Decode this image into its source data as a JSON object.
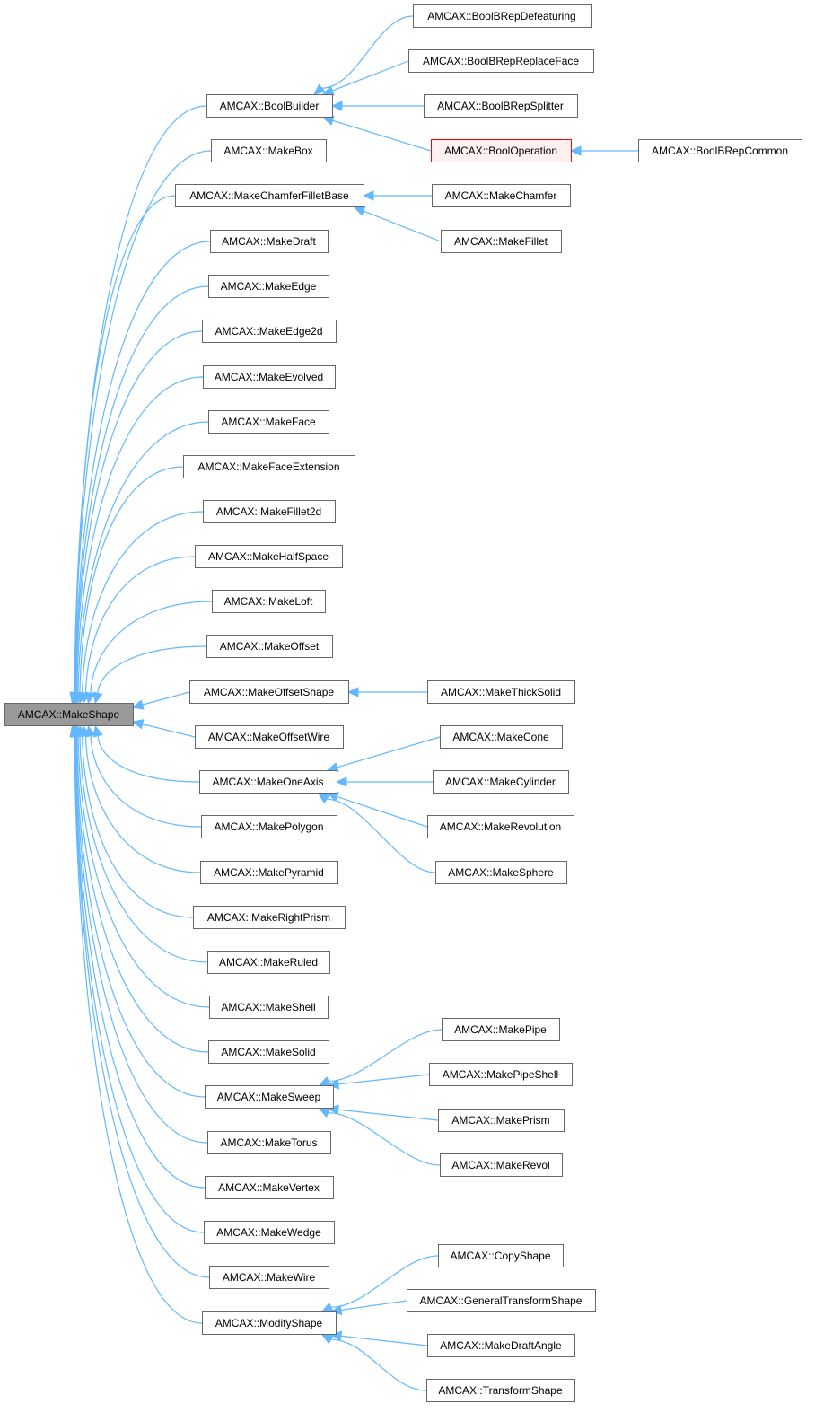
{
  "colors": {
    "edge": "#63b8ff",
    "node_border": "#666666",
    "root_fill": "#999999",
    "highlight_border": "#ff0000",
    "highlight_fill": "#fff0f0"
  },
  "root": "AMCAX::MakeShape",
  "highlighted": "AMCAX::BoolOperation",
  "nodes": [
    "AMCAX::MakeShape",
    "AMCAX::BoolBuilder",
    "AMCAX::MakeBox",
    "AMCAX::MakeChamferFilletBase",
    "AMCAX::MakeDraft",
    "AMCAX::MakeEdge",
    "AMCAX::MakeEdge2d",
    "AMCAX::MakeEvolved",
    "AMCAX::MakeFace",
    "AMCAX::MakeFaceExtension",
    "AMCAX::MakeFillet2d",
    "AMCAX::MakeHalfSpace",
    "AMCAX::MakeLoft",
    "AMCAX::MakeOffset",
    "AMCAX::MakeOffsetShape",
    "AMCAX::MakeOffsetWire",
    "AMCAX::MakeOneAxis",
    "AMCAX::MakePolygon",
    "AMCAX::MakePyramid",
    "AMCAX::MakeRightPrism",
    "AMCAX::MakeRuled",
    "AMCAX::MakeShell",
    "AMCAX::MakeSolid",
    "AMCAX::MakeSweep",
    "AMCAX::MakeTorus",
    "AMCAX::MakeVertex",
    "AMCAX::MakeWedge",
    "AMCAX::MakeWire",
    "AMCAX::ModifyShape",
    "AMCAX::BoolBRepDefeaturing",
    "AMCAX::BoolBRepReplaceFace",
    "AMCAX::BoolBRepSplitter",
    "AMCAX::BoolOperation",
    "AMCAX::BoolBRepCommon",
    "AMCAX::MakeChamfer",
    "AMCAX::MakeFillet",
    "AMCAX::MakeThickSolid",
    "AMCAX::MakeCone",
    "AMCAX::MakeCylinder",
    "AMCAX::MakeRevolution",
    "AMCAX::MakeSphere",
    "AMCAX::MakePipe",
    "AMCAX::MakePipeShell",
    "AMCAX::MakePrism",
    "AMCAX::MakeRevol",
    "AMCAX::CopyShape",
    "AMCAX::GeneralTransformShape",
    "AMCAX::MakeDraftAngle",
    "AMCAX::TransformShape"
  ],
  "edges": [
    [
      "AMCAX::BoolBuilder",
      "AMCAX::MakeShape"
    ],
    [
      "AMCAX::MakeBox",
      "AMCAX::MakeShape"
    ],
    [
      "AMCAX::MakeChamferFilletBase",
      "AMCAX::MakeShape"
    ],
    [
      "AMCAX::MakeDraft",
      "AMCAX::MakeShape"
    ],
    [
      "AMCAX::MakeEdge",
      "AMCAX::MakeShape"
    ],
    [
      "AMCAX::MakeEdge2d",
      "AMCAX::MakeShape"
    ],
    [
      "AMCAX::MakeEvolved",
      "AMCAX::MakeShape"
    ],
    [
      "AMCAX::MakeFace",
      "AMCAX::MakeShape"
    ],
    [
      "AMCAX::MakeFaceExtension",
      "AMCAX::MakeShape"
    ],
    [
      "AMCAX::MakeFillet2d",
      "AMCAX::MakeShape"
    ],
    [
      "AMCAX::MakeHalfSpace",
      "AMCAX::MakeShape"
    ],
    [
      "AMCAX::MakeLoft",
      "AMCAX::MakeShape"
    ],
    [
      "AMCAX::MakeOffset",
      "AMCAX::MakeShape"
    ],
    [
      "AMCAX::MakeOffsetShape",
      "AMCAX::MakeShape"
    ],
    [
      "AMCAX::MakeOffsetWire",
      "AMCAX::MakeShape"
    ],
    [
      "AMCAX::MakeOneAxis",
      "AMCAX::MakeShape"
    ],
    [
      "AMCAX::MakePolygon",
      "AMCAX::MakeShape"
    ],
    [
      "AMCAX::MakePyramid",
      "AMCAX::MakeShape"
    ],
    [
      "AMCAX::MakeRightPrism",
      "AMCAX::MakeShape"
    ],
    [
      "AMCAX::MakeRuled",
      "AMCAX::MakeShape"
    ],
    [
      "AMCAX::MakeShell",
      "AMCAX::MakeShape"
    ],
    [
      "AMCAX::MakeSolid",
      "AMCAX::MakeShape"
    ],
    [
      "AMCAX::MakeSweep",
      "AMCAX::MakeShape"
    ],
    [
      "AMCAX::MakeTorus",
      "AMCAX::MakeShape"
    ],
    [
      "AMCAX::MakeVertex",
      "AMCAX::MakeShape"
    ],
    [
      "AMCAX::MakeWedge",
      "AMCAX::MakeShape"
    ],
    [
      "AMCAX::MakeWire",
      "AMCAX::MakeShape"
    ],
    [
      "AMCAX::ModifyShape",
      "AMCAX::MakeShape"
    ],
    [
      "AMCAX::BoolBRepDefeaturing",
      "AMCAX::BoolBuilder"
    ],
    [
      "AMCAX::BoolBRepReplaceFace",
      "AMCAX::BoolBuilder"
    ],
    [
      "AMCAX::BoolBRepSplitter",
      "AMCAX::BoolBuilder"
    ],
    [
      "AMCAX::BoolOperation",
      "AMCAX::BoolBuilder"
    ],
    [
      "AMCAX::BoolBRepCommon",
      "AMCAX::BoolOperation"
    ],
    [
      "AMCAX::MakeChamfer",
      "AMCAX::MakeChamferFilletBase"
    ],
    [
      "AMCAX::MakeFillet",
      "AMCAX::MakeChamferFilletBase"
    ],
    [
      "AMCAX::MakeThickSolid",
      "AMCAX::MakeOffsetShape"
    ],
    [
      "AMCAX::MakeCone",
      "AMCAX::MakeOneAxis"
    ],
    [
      "AMCAX::MakeCylinder",
      "AMCAX::MakeOneAxis"
    ],
    [
      "AMCAX::MakeRevolution",
      "AMCAX::MakeOneAxis"
    ],
    [
      "AMCAX::MakeSphere",
      "AMCAX::MakeOneAxis"
    ],
    [
      "AMCAX::MakePipe",
      "AMCAX::MakeSweep"
    ],
    [
      "AMCAX::MakePipeShell",
      "AMCAX::MakeSweep"
    ],
    [
      "AMCAX::MakePrism",
      "AMCAX::MakeSweep"
    ],
    [
      "AMCAX::MakeRevol",
      "AMCAX::MakeSweep"
    ],
    [
      "AMCAX::CopyShape",
      "AMCAX::ModifyShape"
    ],
    [
      "AMCAX::GeneralTransformShape",
      "AMCAX::ModifyShape"
    ],
    [
      "AMCAX::MakeDraftAngle",
      "AMCAX::ModifyShape"
    ],
    [
      "AMCAX::TransformShape",
      "AMCAX::ModifyShape"
    ]
  ]
}
